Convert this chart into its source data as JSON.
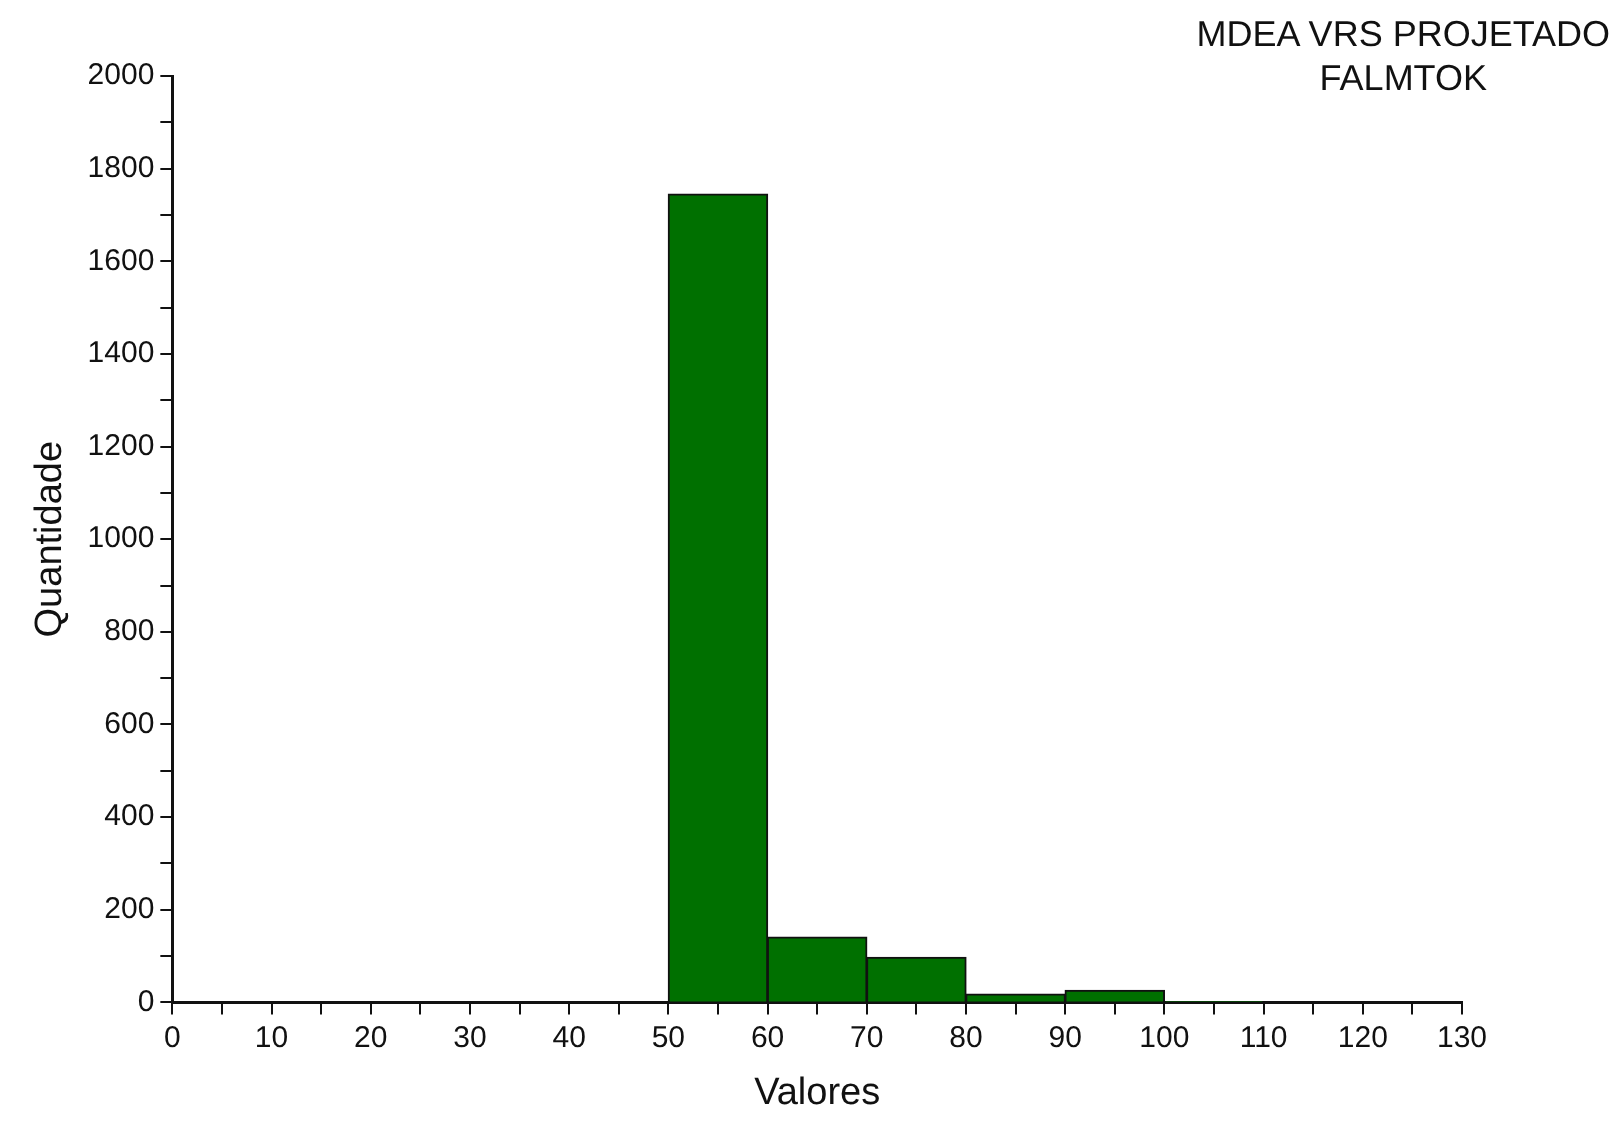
{
  "chart_data": {
    "type": "histogram",
    "title": "MDEA VRS PROJETADO",
    "subtitle": "FALMTOK",
    "xlabel": "Valores",
    "ylabel": "Quantidade",
    "bins": [
      0,
      10,
      20,
      30,
      40,
      50,
      60,
      70,
      80,
      90,
      100,
      110,
      120,
      130
    ],
    "values": [
      0,
      0,
      0,
      0,
      0,
      1745,
      141,
      97,
      18,
      26,
      2,
      0,
      0
    ],
    "color": "#007000",
    "xlim": [
      0,
      130
    ],
    "xticks": [
      0,
      {
        "value": 5,
        "label": null
      },
      10,
      {
        "value": 15,
        "label": null
      },
      20,
      {
        "value": 25,
        "label": null
      },
      30,
      {
        "value": 35,
        "label": null
      },
      40,
      {
        "value": 45,
        "label": null
      },
      50,
      {
        "value": 55,
        "label": null
      },
      60,
      {
        "value": 65,
        "label": null
      },
      70,
      {
        "value": 75,
        "label": null
      },
      80,
      {
        "value": 85,
        "label": null
      },
      90,
      {
        "value": 95,
        "label": null
      },
      100,
      {
        "value": 105,
        "label": null
      },
      110,
      {
        "value": 115,
        "label": null
      },
      120,
      {
        "value": 125,
        "label": null
      },
      130
    ],
    "ylim": [
      0,
      2000
    ],
    "yticks": [
      0,
      {
        "value": 100,
        "label": null
      },
      200,
      {
        "value": 300,
        "label": null
      },
      400,
      {
        "value": 500,
        "label": null
      },
      600,
      {
        "value": 700,
        "label": null
      },
      800,
      {
        "value": 900,
        "label": null
      },
      1000,
      {
        "value": 1100,
        "label": null
      },
      1200,
      {
        "value": 1300,
        "label": null
      },
      1400,
      {
        "value": 1500,
        "label": null
      },
      1600,
      {
        "value": 1700,
        "label": null
      },
      1800,
      {
        "value": 1900,
        "label": null
      },
      2000
    ],
    "grid": false,
    "legend": false
  }
}
